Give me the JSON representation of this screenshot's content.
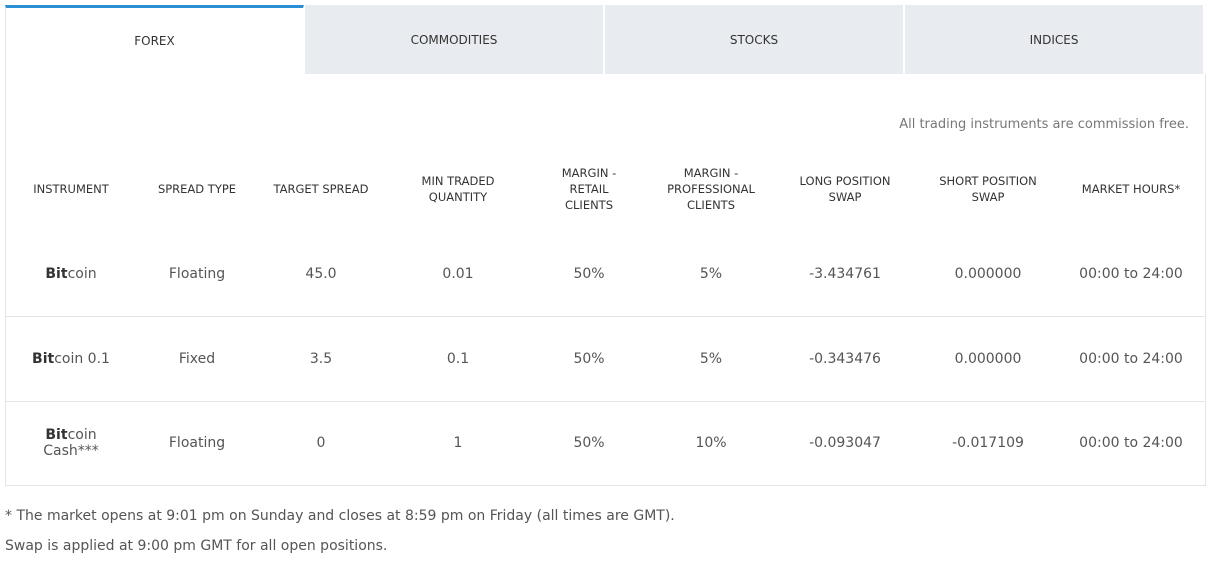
{
  "tabs": [
    "FOREX",
    "COMMODITIES",
    "STOCKS",
    "INDICES"
  ],
  "active_tab": "FOREX",
  "note": "All trading instruments are commission free.",
  "table": {
    "header": [
      "INSTRUMENT",
      "SPREAD TYPE",
      "TARGET SPREAD",
      "MIN TRADED QUANTITY",
      "MARGIN - RETAIL CLIENTS",
      "MARGIN - PROFESSIONAL CLIENTS",
      "LONG POSITION SWAP",
      "SHORT POSITION SWAP",
      "MARKET HOURS*"
    ],
    "rows": [
      [
        {
          "match": "Bit",
          "rest": "coin"
        },
        "Floating",
        "45.0",
        "0.01",
        "50%",
        "5%",
        "-3.434761",
        "0.000000",
        "00:00 to 24:00"
      ],
      [
        {
          "match": "Bit",
          "rest": "coin 0.1"
        },
        "Fixed",
        "3.5",
        "0.1",
        "50%",
        "5%",
        "-0.343476",
        "0.000000",
        "00:00 to 24:00"
      ],
      [
        {
          "match": "Bit",
          "rest": "coin Cash***"
        },
        "Floating",
        "0",
        "1",
        "50%",
        "10%",
        "-0.093047",
        "-0.017109",
        "00:00 to 24:00"
      ]
    ]
  },
  "footnotes": [
    "* The market opens at 9:01 pm on Sunday and closes at 8:59 pm on Friday (all times are GMT).",
    "Swap is applied at 9:00 pm GMT for all open positions."
  ]
}
